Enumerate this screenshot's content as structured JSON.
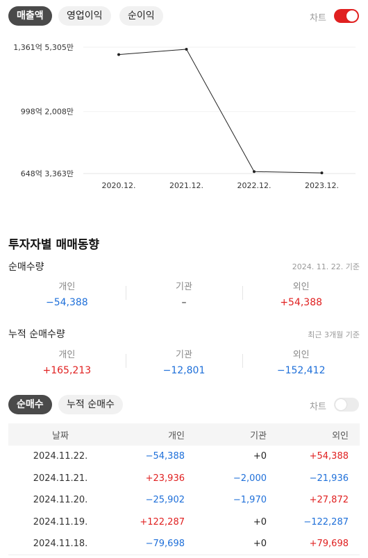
{
  "chart_tabs": [
    {
      "label": "매출액",
      "active": true
    },
    {
      "label": "영업이익",
      "active": false
    },
    {
      "label": "순이익",
      "active": false
    }
  ],
  "chart_toggle": {
    "label": "차트",
    "on": true
  },
  "chart_data": {
    "type": "line",
    "x": [
      "2020.12.",
      "2021.12.",
      "2022.12.",
      "2023.12."
    ],
    "series": [
      {
        "values": [
          1320,
          1350,
          659,
          652
        ]
      }
    ],
    "yticks": [
      {
        "value": 1361.5305,
        "label": "1,361억 5,305만"
      },
      {
        "value": 998.2008,
        "label": "998억 2,008만"
      },
      {
        "value": 648.3363,
        "label": "648억 3,363만"
      }
    ],
    "ylim": [
      648.3363,
      1361.5305
    ],
    "grid": true,
    "line_color": "#222222"
  },
  "investor": {
    "title": "투자자별 매매동향",
    "net": {
      "label": "순매수량",
      "date": "2024. 11. 22. 기준",
      "cells": [
        {
          "label": "개인",
          "value": "−54,388",
          "sign": "neg"
        },
        {
          "label": "기관",
          "value": "–",
          "sign": "zero"
        },
        {
          "label": "외인",
          "value": "+54,388",
          "sign": "pos"
        }
      ]
    },
    "cumulative": {
      "label": "누적 순매수량",
      "note": "최근 3개월 기준",
      "cells": [
        {
          "label": "개인",
          "value": "+165,213",
          "sign": "pos"
        },
        {
          "label": "기관",
          "value": "−12,801",
          "sign": "neg"
        },
        {
          "label": "외인",
          "value": "−152,412",
          "sign": "neg"
        }
      ]
    }
  },
  "table_tabs": [
    {
      "label": "순매수",
      "active": true
    },
    {
      "label": "누적 순매수",
      "active": false
    }
  ],
  "table_toggle": {
    "label": "차트",
    "on": false
  },
  "table": {
    "headers": [
      "날짜",
      "개인",
      "기관",
      "외인"
    ],
    "rows": [
      {
        "date": "2024.11.22.",
        "individual": "−54,388",
        "institution": "+0",
        "foreign": "+54,388",
        "signs": [
          "neg",
          "zero",
          "pos"
        ]
      },
      {
        "date": "2024.11.21.",
        "individual": "+23,936",
        "institution": "−2,000",
        "foreign": "−21,936",
        "signs": [
          "pos",
          "neg",
          "neg"
        ]
      },
      {
        "date": "2024.11.20.",
        "individual": "−25,902",
        "institution": "−1,970",
        "foreign": "+27,872",
        "signs": [
          "neg",
          "neg",
          "pos"
        ]
      },
      {
        "date": "2024.11.19.",
        "individual": "+122,287",
        "institution": "+0",
        "foreign": "−122,287",
        "signs": [
          "pos",
          "zero",
          "neg"
        ]
      },
      {
        "date": "2024.11.18.",
        "individual": "−79,698",
        "institution": "+0",
        "foreign": "+79,698",
        "signs": [
          "neg",
          "zero",
          "pos"
        ]
      }
    ]
  }
}
